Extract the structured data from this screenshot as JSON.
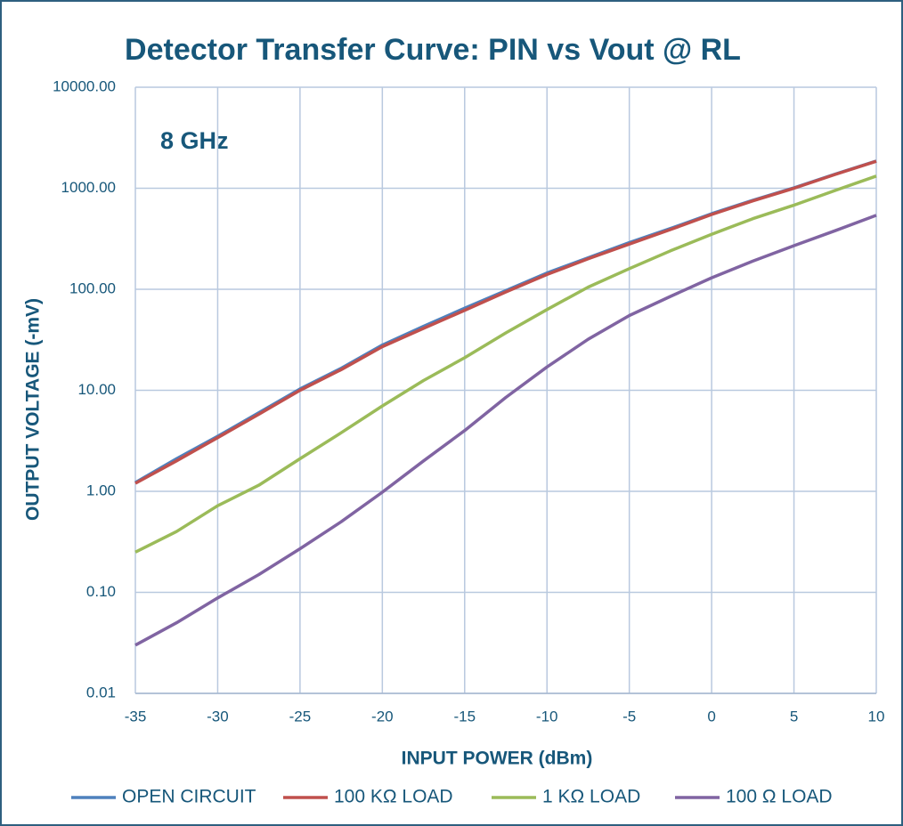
{
  "chart_data": {
    "type": "line",
    "title": "Detector Transfer Curve: PIN vs Vout @ RL",
    "annotation": "8 GHz",
    "x_label": "INPUT POWER (dBm)",
    "y_label": "OUTPUT VOLTAGE (-mV)",
    "y_log": true,
    "grid": true,
    "legend": "bottom",
    "x": [
      -35,
      -32.5,
      -30,
      -27.5,
      -25,
      -22.5,
      -20,
      -17.5,
      -15,
      -12.5,
      -10,
      -7.5,
      -5,
      -2.5,
      0,
      2.5,
      5,
      7.5,
      10
    ],
    "xlim": [
      -35,
      10
    ],
    "xticks": [
      -35,
      -30,
      -25,
      -20,
      -15,
      -10,
      -5,
      0,
      5,
      10
    ],
    "ylim": [
      0.01,
      10000
    ],
    "yticks": [
      {
        "value": 0.01,
        "label": "0.01"
      },
      {
        "value": 0.1,
        "label": "0.10"
      },
      {
        "value": 1,
        "label": "1.00"
      },
      {
        "value": 10,
        "label": "10.00"
      },
      {
        "value": 100,
        "label": "100.00"
      },
      {
        "value": 1000,
        "label": "1000.00"
      },
      {
        "value": 10000,
        "label": "10000.00"
      }
    ],
    "series": [
      {
        "name": "OPEN CIRCUIT",
        "color": "#4f81bd",
        "values": [
          1.22,
          2.1,
          3.5,
          6.0,
          10.3,
          16.5,
          28,
          43,
          65,
          97,
          145,
          205,
          290,
          400,
          560,
          760,
          1010,
          1380,
          1860
        ]
      },
      {
        "name": "100 KΩ LOAD",
        "color": "#c0504d",
        "values": [
          1.2,
          2.0,
          3.4,
          5.8,
          10,
          16,
          27,
          41,
          62,
          94,
          140,
          200,
          280,
          390,
          550,
          750,
          1000,
          1370,
          1850
        ]
      },
      {
        "name": "1 KΩ LOAD",
        "color": "#9bbb59",
        "values": [
          0.25,
          0.4,
          0.72,
          1.15,
          2.1,
          3.8,
          7.0,
          12.5,
          21,
          37,
          63,
          105,
          160,
          240,
          350,
          500,
          680,
          950,
          1320
        ]
      },
      {
        "name": "100 Ω LOAD",
        "color": "#8064a2",
        "values": [
          0.03,
          0.05,
          0.088,
          0.15,
          0.27,
          0.5,
          0.98,
          2.0,
          4.0,
          8.5,
          17,
          32,
          55,
          85,
          130,
          190,
          270,
          380,
          540
        ]
      }
    ]
  }
}
